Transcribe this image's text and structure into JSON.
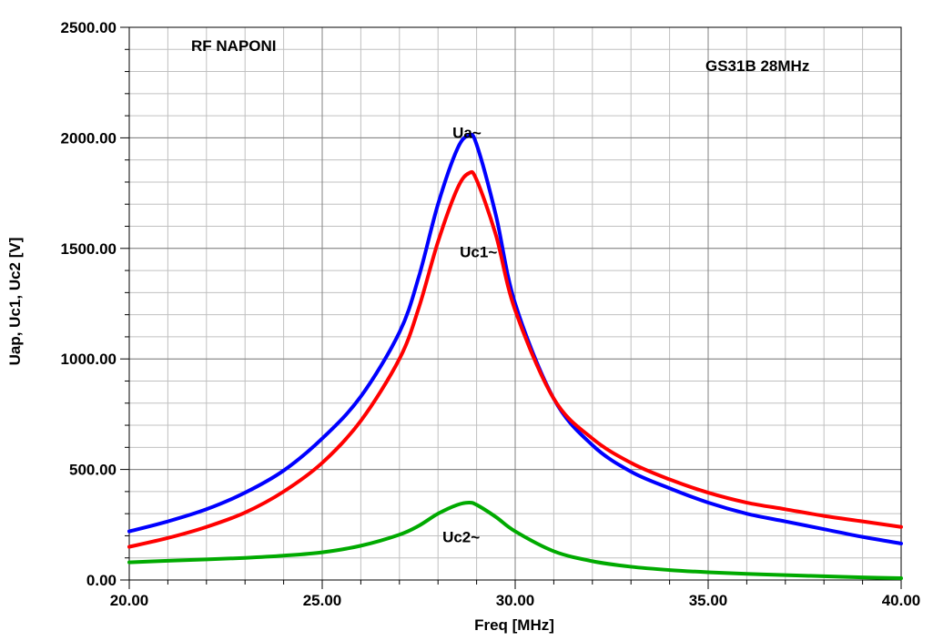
{
  "chart_data": {
    "type": "line",
    "title": "RF NAPONI",
    "subtitle": "GS31B 28MHz",
    "xlabel": "Freq [MHz]",
    "ylabel": "Uap, Uc1, Uc2 [V]",
    "xlim": [
      20,
      40
    ],
    "ylim": [
      0,
      2500
    ],
    "xticks": [
      20,
      25,
      30,
      35,
      40
    ],
    "xtick_labels": [
      "20.00",
      "25.00",
      "30.00",
      "35.00",
      "40.00"
    ],
    "yticks": [
      0,
      500,
      1000,
      1500,
      2000,
      2500
    ],
    "ytick_labels": [
      "0.00",
      "500.00",
      "1000.00",
      "1500.00",
      "2000.00",
      "2500.00"
    ],
    "grid": true,
    "x": [
      20,
      21,
      22,
      23,
      24,
      25,
      26,
      27,
      27.5,
      28,
      28.5,
      28.8,
      29,
      29.5,
      30,
      31,
      32,
      33,
      34,
      35,
      36,
      37,
      38,
      39,
      40
    ],
    "series": [
      {
        "name": "Ua~",
        "color": "#0000ff",
        "values": [
          220,
          265,
          320,
          395,
          495,
          640,
          830,
          1120,
          1370,
          1700,
          1950,
          2010,
          1970,
          1650,
          1250,
          820,
          610,
          490,
          415,
          350,
          300,
          265,
          230,
          195,
          165
        ]
      },
      {
        "name": "Uc1~",
        "color": "#ff0000",
        "values": [
          150,
          190,
          240,
          305,
          400,
          530,
          720,
          1000,
          1230,
          1530,
          1770,
          1840,
          1810,
          1560,
          1220,
          820,
          640,
          530,
          455,
          395,
          350,
          320,
          290,
          265,
          240
        ]
      },
      {
        "name": "Uc2~",
        "color": "#00aa00",
        "values": [
          80,
          87,
          93,
          100,
          110,
          125,
          155,
          205,
          245,
          300,
          340,
          350,
          340,
          285,
          220,
          130,
          85,
          60,
          45,
          35,
          28,
          22,
          17,
          12,
          8
        ]
      }
    ],
    "annotations": [
      {
        "text": "Ua~",
        "x": 28.75,
        "y": 2000
      },
      {
        "text": "Uc1~",
        "x": 29.05,
        "y": 1460
      },
      {
        "text": "Uc2~",
        "x": 28.6,
        "y": 170
      }
    ]
  }
}
